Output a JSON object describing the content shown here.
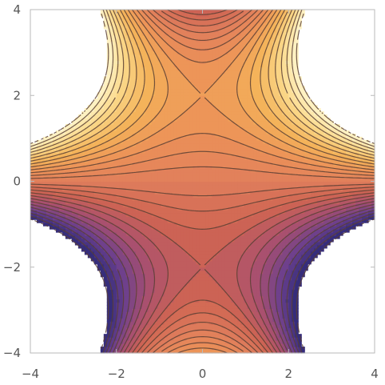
{
  "chart_data": {
    "type": "contour",
    "title": "",
    "xlabel": "",
    "ylabel": "",
    "xlim": [
      -4,
      4
    ],
    "ylim": [
      -4,
      4
    ],
    "x_ticks": [
      "−4",
      "−2",
      "0",
      "2",
      "4"
    ],
    "y_ticks": [
      "−4",
      "−2",
      "0",
      "2",
      "4"
    ],
    "x_tick_values": [
      -4,
      -2,
      0,
      2,
      4
    ],
    "y_tick_values": [
      -4,
      -2,
      0,
      2,
      4
    ],
    "contour_levels": [
      -13,
      -12,
      -11,
      -10,
      -9,
      -8,
      -7,
      -6,
      -5,
      -4,
      -3,
      -2,
      -1,
      0,
      1,
      2,
      3,
      4,
      5,
      6,
      7,
      8,
      9,
      10,
      11,
      12,
      13
    ],
    "masked_region": "right side where |value| > 13 (blank)",
    "colormap": [
      "#2c2a78",
      "#6a3f8e",
      "#a9506f",
      "#cf6553",
      "#e07e5c",
      "#ec9258",
      "#f4b35a",
      "#fbd889",
      "#fff6cc"
    ],
    "grid": false,
    "legend": "none"
  }
}
